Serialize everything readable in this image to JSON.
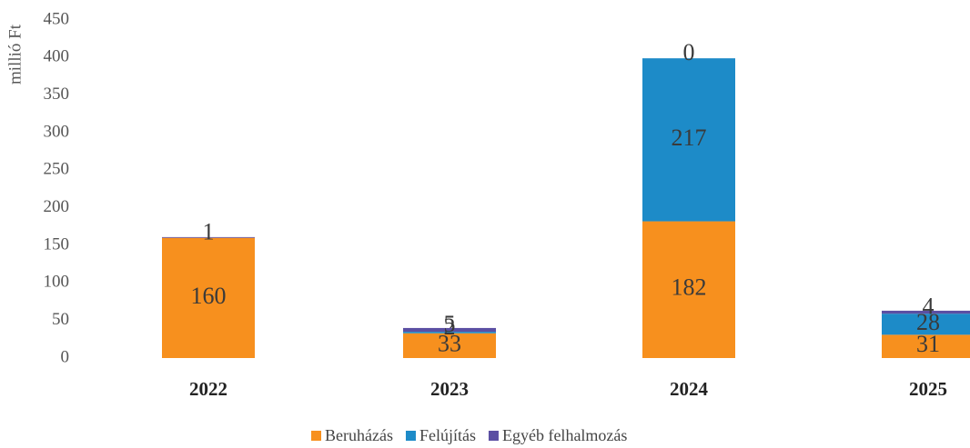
{
  "chart_data": {
    "type": "stacked_bar",
    "y_label": "millió Ft",
    "categories": [
      "2022",
      "2023",
      "2024",
      "2025"
    ],
    "series": [
      {
        "name": "Beruházás",
        "color": "#f7901e",
        "values": [
          160,
          33,
          182,
          31
        ]
      },
      {
        "name": "Felújítás",
        "color": "#1d8bc8",
        "values": [
          null,
          2,
          217,
          28
        ]
      },
      {
        "name": "Egyéb felhalmozás",
        "color": "#5b4fa3",
        "values": [
          1,
          5,
          0,
          4
        ]
      }
    ],
    "ylim": [
      0,
      450
    ],
    "yticks": [
      0,
      50,
      100,
      150,
      200,
      250,
      300,
      350,
      400,
      450
    ],
    "grid": false,
    "legend": "bottom"
  }
}
